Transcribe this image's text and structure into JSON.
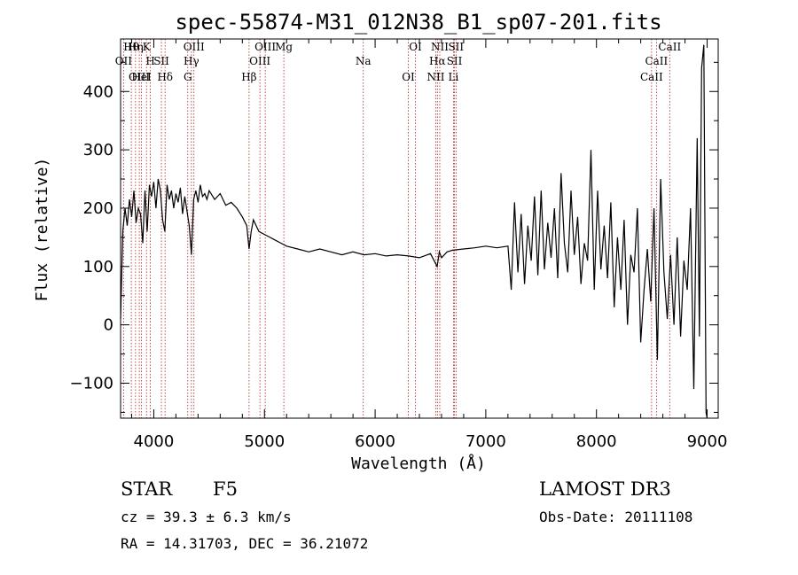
{
  "chart_data": {
    "type": "line",
    "title": "spec-55874-M31_012N38_B1_sp07-201.fits",
    "xlabel": "Wavelength (Å)",
    "ylabel": "Flux (relative)",
    "xlim": [
      3700,
      9100
    ],
    "ylim": [
      -160,
      490
    ],
    "x_ticks": [
      4000,
      5000,
      6000,
      7000,
      8000,
      9000
    ],
    "x_tick_labels": [
      "4000",
      "5000",
      "6000",
      "7000",
      "8000",
      "9000"
    ],
    "y_ticks": [
      -100,
      0,
      100,
      200,
      300,
      400
    ],
    "y_tick_labels": [
      "−100",
      "0",
      "100",
      "200",
      "300",
      "400"
    ],
    "series": [
      {
        "name": "flux",
        "x": [
          3700,
          3720,
          3740,
          3760,
          3780,
          3800,
          3820,
          3840,
          3860,
          3880,
          3900,
          3920,
          3940,
          3960,
          3980,
          4000,
          4020,
          4040,
          4060,
          4080,
          4100,
          4120,
          4140,
          4160,
          4180,
          4200,
          4220,
          4240,
          4260,
          4280,
          4300,
          4320,
          4340,
          4360,
          4380,
          4400,
          4420,
          4440,
          4460,
          4480,
          4500,
          4550,
          4600,
          4650,
          4700,
          4750,
          4800,
          4840,
          4861,
          4880,
          4900,
          4950,
          5000,
          5050,
          5100,
          5150,
          5200,
          5300,
          5400,
          5500,
          5600,
          5700,
          5800,
          5900,
          6000,
          6100,
          6200,
          6300,
          6400,
          6500,
          6560,
          6580,
          6600,
          6650,
          6700,
          6800,
          6900,
          7000,
          7100,
          7200,
          7230,
          7260,
          7290,
          7320,
          7350,
          7380,
          7410,
          7440,
          7470,
          7500,
          7530,
          7560,
          7590,
          7620,
          7650,
          7680,
          7710,
          7740,
          7770,
          7800,
          7830,
          7860,
          7890,
          7920,
          7950,
          7980,
          8010,
          8040,
          8070,
          8100,
          8130,
          8160,
          8190,
          8220,
          8250,
          8280,
          8310,
          8340,
          8370,
          8400,
          8430,
          8460,
          8490,
          8520,
          8550,
          8580,
          8610,
          8640,
          8670,
          8700,
          8730,
          8760,
          8790,
          8820,
          8850,
          8880,
          8910,
          8930,
          8950,
          8970,
          8990,
          9000
        ],
        "values": [
          10,
          160,
          200,
          170,
          215,
          185,
          230,
          175,
          200,
          190,
          140,
          230,
          160,
          240,
          220,
          245,
          200,
          250,
          230,
          180,
          160,
          240,
          215,
          230,
          200,
          225,
          210,
          235,
          190,
          220,
          195,
          170,
          120,
          215,
          230,
          210,
          240,
          220,
          225,
          215,
          230,
          215,
          225,
          205,
          210,
          200,
          185,
          170,
          130,
          160,
          180,
          160,
          155,
          150,
          145,
          140,
          135,
          130,
          125,
          130,
          125,
          120,
          125,
          120,
          122,
          118,
          120,
          118,
          115,
          122,
          100,
          125,
          115,
          125,
          128,
          130,
          132,
          135,
          132,
          135,
          60,
          210,
          90,
          190,
          70,
          170,
          110,
          220,
          85,
          230,
          95,
          175,
          115,
          200,
          80,
          260,
          140,
          90,
          230,
          120,
          185,
          70,
          140,
          110,
          300,
          60,
          230,
          95,
          170,
          80,
          210,
          30,
          150,
          60,
          180,
          0,
          120,
          90,
          200,
          -30,
          60,
          130,
          40,
          200,
          -60,
          250,
          90,
          10,
          120,
          0,
          150,
          -20,
          110,
          60,
          200,
          -110,
          320,
          -20,
          440,
          480,
          -150,
          -160
        ],
        "color": "#000000"
      }
    ],
    "line_markers": [
      {
        "label": "Hθ",
        "x": 3797
      },
      {
        "label": "OII",
        "x": 3727
      },
      {
        "label": "OIII",
        "x": 3869
      },
      {
        "label": "K",
        "x": 3934
      },
      {
        "label": "H",
        "x": 3969
      },
      {
        "label": "HeI",
        "x": 3889
      },
      {
        "label": "Hη",
        "x": 3835
      },
      {
        "label": "SII",
        "x": 4069
      },
      {
        "label": "Hδ",
        "x": 4102
      },
      {
        "label": "OIII",
        "x": 4363
      },
      {
        "label": "Hγ",
        "x": 4340
      },
      {
        "label": "G",
        "x": 4307
      },
      {
        "label": "OIII",
        "x": 5007
      },
      {
        "label": "OIII",
        "x": 4959
      },
      {
        "label": "Hβ",
        "x": 4861
      },
      {
        "label": "Mg",
        "x": 5175
      },
      {
        "label": "Na",
        "x": 5893
      },
      {
        "label": "OI",
        "x": 6300
      },
      {
        "label": "OI",
        "x": 6364
      },
      {
        "label": "Hα",
        "x": 6563
      },
      {
        "label": "NII",
        "x": 6548
      },
      {
        "label": "NII",
        "x": 6584
      },
      {
        "label": "SII",
        "x": 6717
      },
      {
        "label": "Li",
        "x": 6708
      },
      {
        "label": "SII",
        "x": 6731
      },
      {
        "label": "CaII",
        "x": 8542
      },
      {
        "label": "CaII",
        "x": 8498
      },
      {
        "label": "CaII",
        "x": 8662
      }
    ]
  },
  "info": {
    "object_class": "STAR",
    "subclass": "F5",
    "survey": "LAMOST DR3",
    "redshift": "cz = 39.3 ± 6.3 km/s",
    "obs_date": "Obs-Date: 20111108",
    "coords": "RA =  14.31703, DEC =  36.21072"
  }
}
